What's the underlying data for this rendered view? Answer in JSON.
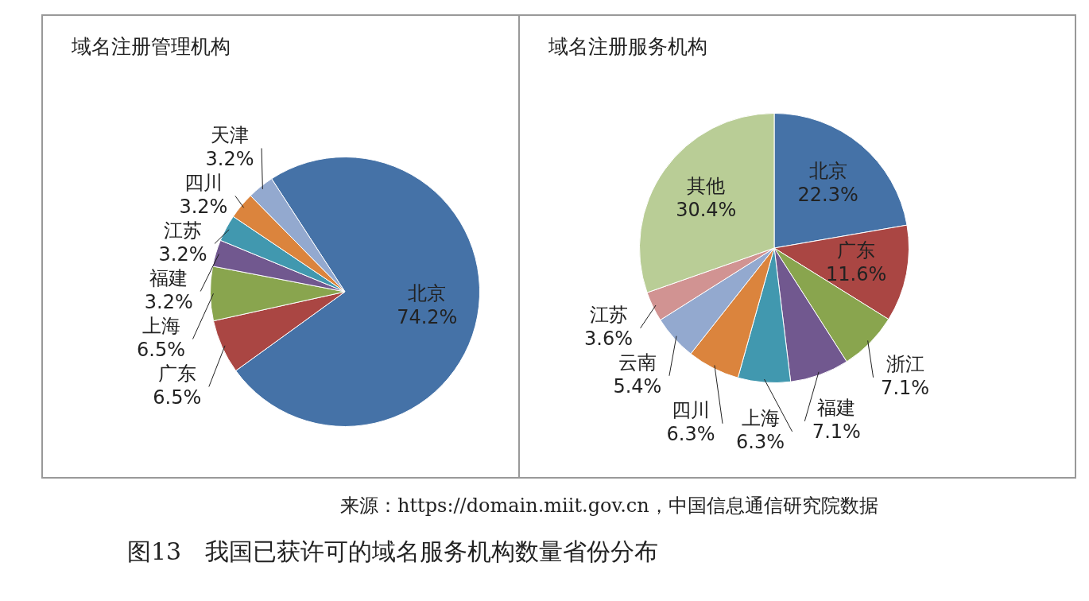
{
  "chart_data": [
    {
      "type": "pie",
      "title": "域名注册管理机构",
      "categories": [
        "北京",
        "广东",
        "上海",
        "福建",
        "江苏",
        "四川",
        "天津"
      ],
      "values": [
        74.2,
        6.5,
        6.5,
        3.2,
        3.2,
        3.2,
        3.2
      ],
      "value_labels": [
        "74.2%",
        "6.5%",
        "6.5%",
        "3.2%",
        "3.2%",
        "3.2%",
        "3.2%"
      ],
      "colors": [
        "#4572a7",
        "#aa4643",
        "#89a54e",
        "#71588f",
        "#4198af",
        "#db843d",
        "#93a9cf"
      ],
      "legend": false
    },
    {
      "type": "pie",
      "title": "域名注册服务机构",
      "categories": [
        "北京",
        "广东",
        "浙江",
        "福建",
        "上海",
        "四川",
        "云南",
        "江苏",
        "其他"
      ],
      "values": [
        22.3,
        11.6,
        7.1,
        7.1,
        6.3,
        6.3,
        5.4,
        3.6,
        30.4
      ],
      "value_labels": [
        "22.3%",
        "11.6%",
        "7.1%",
        "7.1%",
        "6.3%",
        "6.3%",
        "5.4%",
        "3.6%",
        "30.4%"
      ],
      "colors": [
        "#4572a7",
        "#aa4643",
        "#89a54e",
        "#71588f",
        "#4198af",
        "#db843d",
        "#93a9cf",
        "#d19392",
        "#b9cd96"
      ],
      "legend": false,
      "annotations": [
        "来源：https://domain.miit.gov.cn，中国信息通信研究院数据",
        "图13　我国已获许可的域名服务机构数量省份分布"
      ]
    }
  ]
}
